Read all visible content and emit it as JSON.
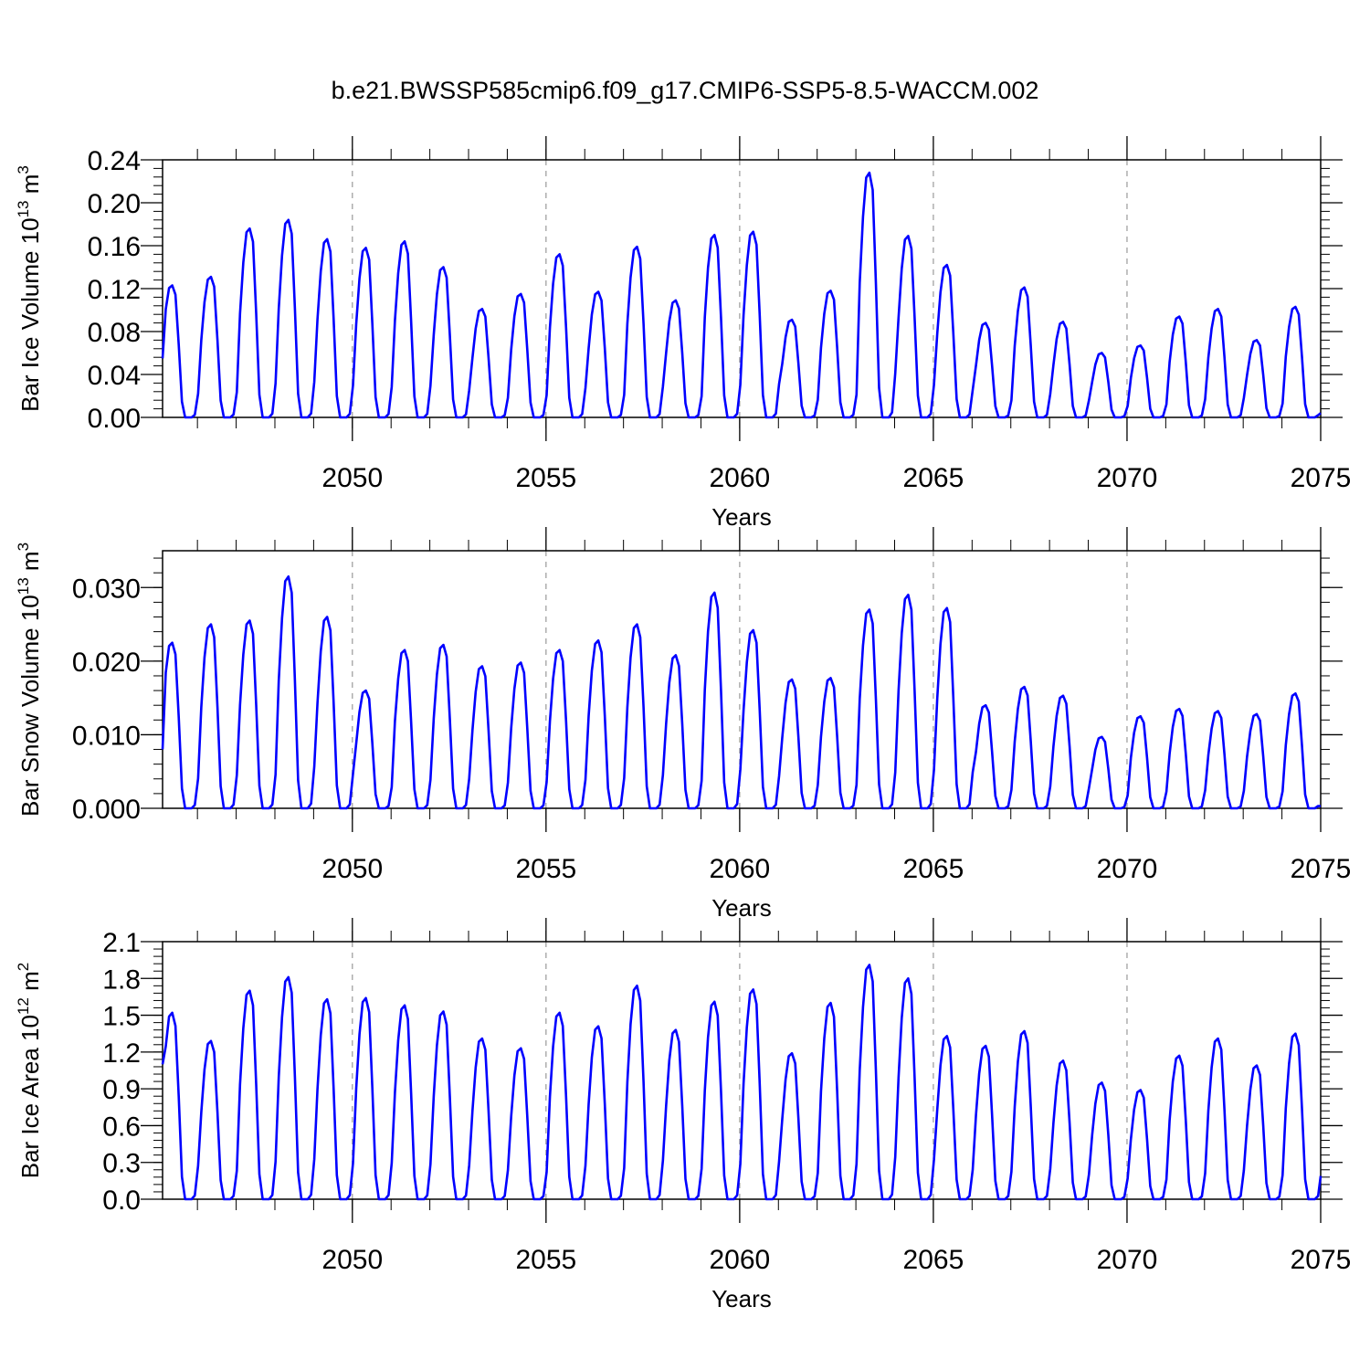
{
  "figure": {
    "title": "b.e21.BWSSP585cmip6.f09_g17.CMIP6-SSP5-8.5-WACCM.002",
    "line_color": "#0000ff"
  },
  "chart_data": [
    {
      "type": "line",
      "xlabel": "Years",
      "ylabel": "Bar Ice Volume 10",
      "ylabel_exp": "13",
      "ylabel_unit": " m",
      "ylabel_unit_exp": "3",
      "xlim": [
        2045.1,
        2075.0
      ],
      "ylim": [
        0.0,
        0.24
      ],
      "xticks": [
        2050,
        2055,
        2060,
        2065,
        2070,
        2075
      ],
      "yticks": [
        0.0,
        0.04,
        0.08,
        0.12,
        0.16,
        0.2,
        0.24
      ],
      "ytick_decimals": 2,
      "peaks": [
        0.123,
        0.131,
        0.176,
        0.184,
        0.166,
        0.158,
        0.164,
        0.14,
        0.101,
        0.115,
        0.152,
        0.117,
        0.159,
        0.109,
        0.17,
        0.173,
        0.091,
        0.118,
        0.228,
        0.169,
        0.142,
        0.088,
        0.121,
        0.089,
        0.06,
        0.067,
        0.094,
        0.101,
        0.072,
        0.103
      ],
      "start_value": 0.055,
      "end_value": 0.004
    },
    {
      "type": "line",
      "xlabel": "Years",
      "ylabel": "Bar Snow Volume 10",
      "ylabel_exp": "13",
      "ylabel_unit": " m",
      "ylabel_unit_exp": "3",
      "xlim": [
        2045.1,
        2075.0
      ],
      "ylim": [
        0.0,
        0.035
      ],
      "xticks": [
        2050,
        2055,
        2060,
        2065,
        2070,
        2075
      ],
      "yticks": [
        0.0,
        0.01,
        0.02,
        0.03
      ],
      "ytick_decimals": 3,
      "peaks": [
        0.0225,
        0.025,
        0.0255,
        0.0315,
        0.026,
        0.016,
        0.0215,
        0.0222,
        0.0193,
        0.0198,
        0.0215,
        0.0228,
        0.025,
        0.0208,
        0.0293,
        0.0242,
        0.0175,
        0.0177,
        0.027,
        0.029,
        0.0272,
        0.014,
        0.0165,
        0.0153,
        0.0097,
        0.0125,
        0.0135,
        0.0132,
        0.0128,
        0.0156
      ],
      "start_value": 0.008,
      "end_value": 0.0003
    },
    {
      "type": "line",
      "xlabel": "Years",
      "ylabel": "Bar Ice Area 10",
      "ylabel_exp": "12",
      "ylabel_unit": " m",
      "ylabel_unit_exp": "2",
      "xlim": [
        2045.1,
        2075.0
      ],
      "ylim": [
        0.0,
        2.1
      ],
      "xticks": [
        2050,
        2055,
        2060,
        2065,
        2070,
        2075
      ],
      "yticks": [
        0.0,
        0.3,
        0.6,
        0.9,
        1.2,
        1.5,
        1.8,
        2.1
      ],
      "ytick_decimals": 1,
      "peaks": [
        1.52,
        1.29,
        1.7,
        1.81,
        1.63,
        1.64,
        1.58,
        1.53,
        1.31,
        1.23,
        1.52,
        1.41,
        1.74,
        1.38,
        1.61,
        1.71,
        1.19,
        1.6,
        1.91,
        1.8,
        1.33,
        1.25,
        1.37,
        1.13,
        0.95,
        0.89,
        1.17,
        1.31,
        1.09,
        1.35
      ],
      "start_value": 1.1,
      "end_value": 0.19
    }
  ]
}
